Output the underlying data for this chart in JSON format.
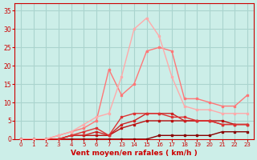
{
  "background_color": "#cceee8",
  "grid_color": "#aad4ce",
  "xlabel": "Vent moyen/en rafales ( km/h )",
  "xlabel_color": "#cc0000",
  "tick_color": "#cc0000",
  "ylim": [
    0,
    37
  ],
  "yticks": [
    0,
    5,
    10,
    15,
    20,
    25,
    30,
    35
  ],
  "xtick_labels": [
    "0",
    "1",
    "2",
    "3",
    "4",
    "5",
    "6",
    "7",
    "13",
    "14",
    "15",
    "16",
    "17",
    "18",
    "19",
    "20",
    "21",
    "22",
    "23"
  ],
  "series": [
    {
      "y": [
        0,
        0,
        0,
        0,
        0,
        0,
        0,
        0,
        0,
        0,
        0,
        1,
        1,
        1,
        1,
        1,
        2,
        2,
        2
      ],
      "color": "#880000",
      "lw": 1.0,
      "marker": "s",
      "ms": 1.8
    },
    {
      "y": [
        0,
        0,
        0,
        0,
        1,
        1,
        1,
        1,
        3,
        4,
        5,
        5,
        5,
        5,
        5,
        5,
        5,
        4,
        4
      ],
      "color": "#bb1111",
      "lw": 1.0,
      "marker": "s",
      "ms": 1.8
    },
    {
      "y": [
        0,
        0,
        0,
        0,
        1,
        1,
        2,
        1,
        4,
        5,
        7,
        7,
        7,
        5,
        5,
        5,
        4,
        4,
        4
      ],
      "color": "#cc2222",
      "lw": 1.0,
      "marker": "s",
      "ms": 1.8
    },
    {
      "y": [
        0,
        0,
        0,
        0,
        1,
        2,
        3,
        1,
        6,
        7,
        7,
        7,
        6,
        6,
        5,
        5,
        4,
        4,
        4
      ],
      "color": "#dd3333",
      "lw": 1.0,
      "marker": "s",
      "ms": 1.8
    },
    {
      "y": [
        0,
        0,
        0,
        1,
        2,
        3,
        5,
        19,
        12,
        15,
        24,
        25,
        24,
        11,
        11,
        10,
        9,
        9,
        12
      ],
      "color": "#ff7777",
      "lw": 1.0,
      "marker": "s",
      "ms": 1.8
    },
    {
      "y": [
        0,
        0,
        0,
        1,
        2,
        4,
        6,
        7,
        17,
        30,
        33,
        28,
        17,
        9,
        8,
        8,
        7,
        7,
        7
      ],
      "color": "#ffaaaa",
      "lw": 1.0,
      "marker": "s",
      "ms": 1.8
    }
  ]
}
